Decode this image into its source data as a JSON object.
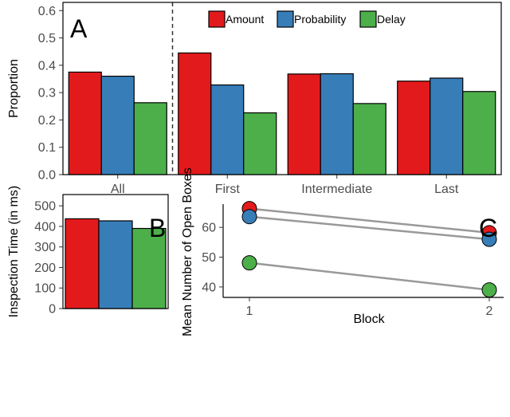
{
  "colors": {
    "amount": "#e31a1c",
    "probability": "#377eb8",
    "delay": "#4daf4a"
  },
  "legend": [
    "Amount",
    "Probability",
    "Delay"
  ],
  "chart_data": [
    {
      "panel": "A",
      "type": "bar",
      "ylabel": "Proportion",
      "ylim": [
        0,
        0.63
      ],
      "yticks": [
        0.0,
        0.1,
        0.2,
        0.3,
        0.4,
        0.5,
        0.6
      ],
      "ytick_labels": [
        "0.0",
        "0.1",
        "0.2",
        "0.3",
        "0.4",
        "0.5",
        "0.6"
      ],
      "categories": [
        "All",
        "First",
        "Intermediate",
        "Last"
      ],
      "series": [
        {
          "name": "Amount",
          "values": [
            0.375,
            0.445,
            0.368,
            0.342
          ]
        },
        {
          "name": "Probability",
          "values": [
            0.36,
            0.328,
            0.369,
            0.353
          ]
        },
        {
          "name": "Delay",
          "values": [
            0.263,
            0.226,
            0.26,
            0.304
          ]
        }
      ],
      "divider": "dashed line between All and First",
      "legend_position": "top"
    },
    {
      "panel": "B",
      "type": "bar",
      "ylabel": "Inspection Time (in ms)",
      "ylim": [
        0,
        555
      ],
      "yticks": [
        0,
        100,
        200,
        300,
        400,
        500
      ],
      "ytick_labels": [
        "0",
        "100",
        "200",
        "300",
        "400",
        "500"
      ],
      "series": [
        {
          "name": "Amount",
          "values": [
            437
          ]
        },
        {
          "name": "Probability",
          "values": [
            427
          ]
        },
        {
          "name": "Delay",
          "values": [
            390
          ]
        }
      ]
    },
    {
      "panel": "C",
      "type": "line",
      "xlabel": "Block",
      "ylabel": "Mean Number of Open Boxes",
      "x": [
        1,
        2
      ],
      "xtick_labels": [
        "1",
        "2"
      ],
      "ylim": [
        36.5,
        67.8
      ],
      "yticks": [
        40,
        50,
        60
      ],
      "ytick_labels": [
        "40",
        "50",
        "60"
      ],
      "series": [
        {
          "name": "Amount",
          "values": [
            66.3,
            58.2
          ]
        },
        {
          "name": "Probability",
          "values": [
            63.6,
            56.0
          ]
        },
        {
          "name": "Delay",
          "values": [
            48.1,
            39.0
          ]
        }
      ]
    }
  ]
}
